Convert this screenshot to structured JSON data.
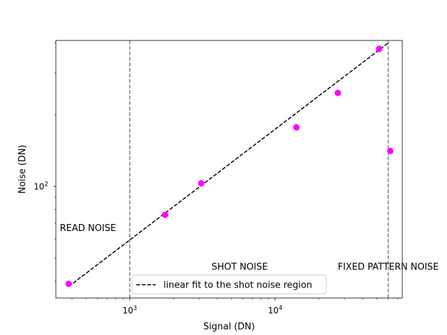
{
  "chart_data": {
    "type": "scatter",
    "xlabel": "Signal (DN)",
    "ylabel": "Noise (DN)",
    "xscale": "log",
    "yscale": "log",
    "xlim": [
      310,
      75000
    ],
    "ylim": [
      34,
      410
    ],
    "x_ticks": [
      {
        "value": 1000,
        "base": "10",
        "exp": "3"
      },
      {
        "value": 10000,
        "base": "10",
        "exp": "4"
      }
    ],
    "y_ticks": [
      {
        "value": 100,
        "base": "10",
        "exp": "2"
      }
    ],
    "grid": false,
    "points": {
      "color": "#ff00ff",
      "x": [
        380,
        1750,
        3100,
        14000,
        27000,
        52000,
        62000
      ],
      "y": [
        39,
        76,
        103,
        177,
        247,
        378,
        141
      ]
    },
    "fit_line": {
      "name": "linear fit to the shot noise region",
      "color": "#000000",
      "style": "dashed",
      "x": [
        380,
        60000
      ],
      "y": [
        38,
        400
      ]
    },
    "vlines": [
      {
        "x": 1000,
        "color": "#808080",
        "style": "dashed"
      },
      {
        "x": 60000,
        "color": "#808080",
        "style": "dashed"
      }
    ],
    "annotations": [
      {
        "text": "READ NOISE",
        "x": 330,
        "y": 67
      },
      {
        "text": "SHOT NOISE",
        "x": 3650,
        "y": 46
      },
      {
        "text": "FIXED PATTERN NOISE",
        "x": 27000,
        "y": 46
      }
    ],
    "legend": {
      "placement": "lower-center",
      "entries": [
        "linear fit to the shot noise region"
      ]
    }
  }
}
